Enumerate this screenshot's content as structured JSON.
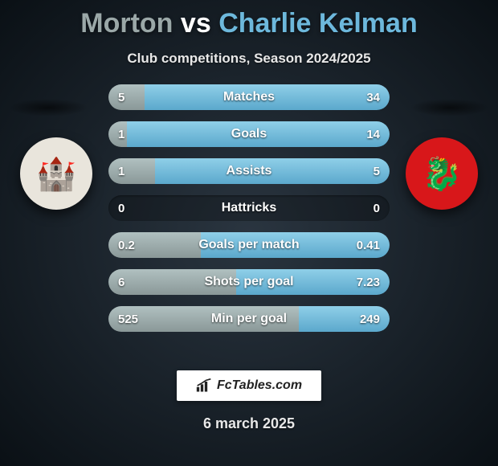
{
  "title": {
    "player1": "Morton",
    "vs": "vs",
    "player2": "Charlie Kelman"
  },
  "subtitle": "Club competitions, Season 2024/2025",
  "colors": {
    "player1_bar": "#9ba8a8",
    "player2_bar": "#6db8dc",
    "player1_title": "#9ba8a8",
    "player2_title": "#6db8dc"
  },
  "crests": {
    "left_emoji": "🏰",
    "right_emoji": "🐉"
  },
  "stats": [
    {
      "label": "Matches",
      "left_val": "5",
      "right_val": "34",
      "left_pct": 12.8,
      "right_pct": 87.2
    },
    {
      "label": "Goals",
      "left_val": "1",
      "right_val": "14",
      "left_pct": 6.7,
      "right_pct": 93.3
    },
    {
      "label": "Assists",
      "left_val": "1",
      "right_val": "5",
      "left_pct": 16.7,
      "right_pct": 83.3
    },
    {
      "label": "Hattricks",
      "left_val": "0",
      "right_val": "0",
      "left_pct": 0,
      "right_pct": 0
    },
    {
      "label": "Goals per match",
      "left_val": "0.2",
      "right_val": "0.41",
      "left_pct": 32.8,
      "right_pct": 67.2
    },
    {
      "label": "Shots per goal",
      "left_val": "6",
      "right_val": "7.23",
      "left_pct": 45.3,
      "right_pct": 54.7
    },
    {
      "label": "Min per goal",
      "left_val": "525",
      "right_val": "249",
      "left_pct": 67.8,
      "right_pct": 32.2
    }
  ],
  "brand": "FcTables.com",
  "date": "6 march 2025"
}
